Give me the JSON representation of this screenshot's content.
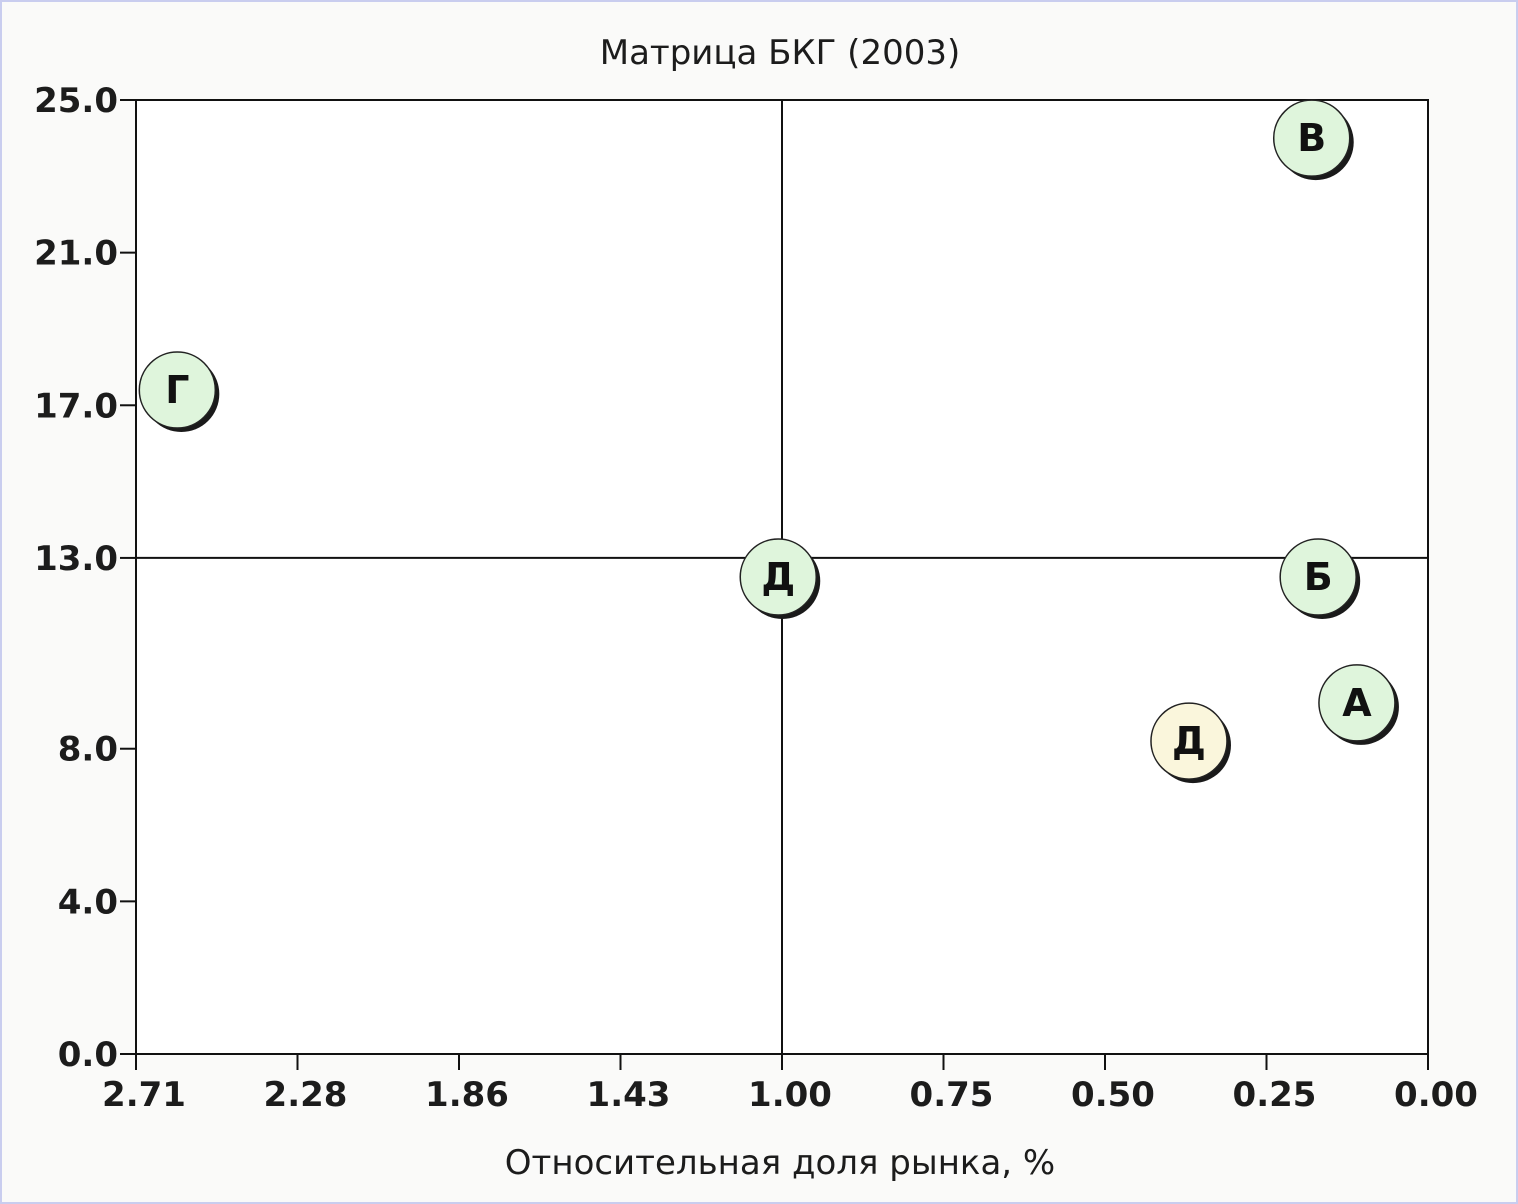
{
  "chart_data": {
    "type": "scatter",
    "title": "Матрица БКГ (2003)",
    "xlabel": "Относительная доля рынка, %",
    "ylabel": "",
    "x_axis": {
      "reversed": true,
      "ticks": [
        2.71,
        2.28,
        1.86,
        1.43,
        1.0,
        0.75,
        0.5,
        0.25,
        0.0
      ],
      "tick_labels": [
        "2.71",
        "2.28",
        "1.86",
        "1.43",
        "1.00",
        "0.75",
        "0.50",
        "0.25",
        "0.00"
      ]
    },
    "y_axis": {
      "ylim": [
        0,
        25
      ],
      "ticks": [
        0,
        4,
        8,
        13,
        17,
        21,
        25
      ],
      "tick_labels": [
        "0.0",
        "4.0",
        "8.0",
        "13.0",
        "17.0",
        "21.0",
        "25.0"
      ]
    },
    "dividers": {
      "x": 1.0,
      "y": 13.0
    },
    "grid": false,
    "legend": "none",
    "points": [
      {
        "label": "В",
        "x": 0.18,
        "y": 24.0,
        "color": "#dff5dc"
      },
      {
        "label": "Г",
        "x": 2.6,
        "y": 17.4,
        "color": "#dff5dc"
      },
      {
        "label": "Д",
        "x": 1.01,
        "y": 12.5,
        "color": "#dff5dc"
      },
      {
        "label": "Б",
        "x": 0.17,
        "y": 12.5,
        "color": "#dff5dc"
      },
      {
        "label": "А",
        "x": 0.11,
        "y": 9.2,
        "color": "#dff5dc"
      },
      {
        "label": "Д",
        "x": 0.37,
        "y": 8.2,
        "color": "#faf6dc"
      }
    ]
  }
}
